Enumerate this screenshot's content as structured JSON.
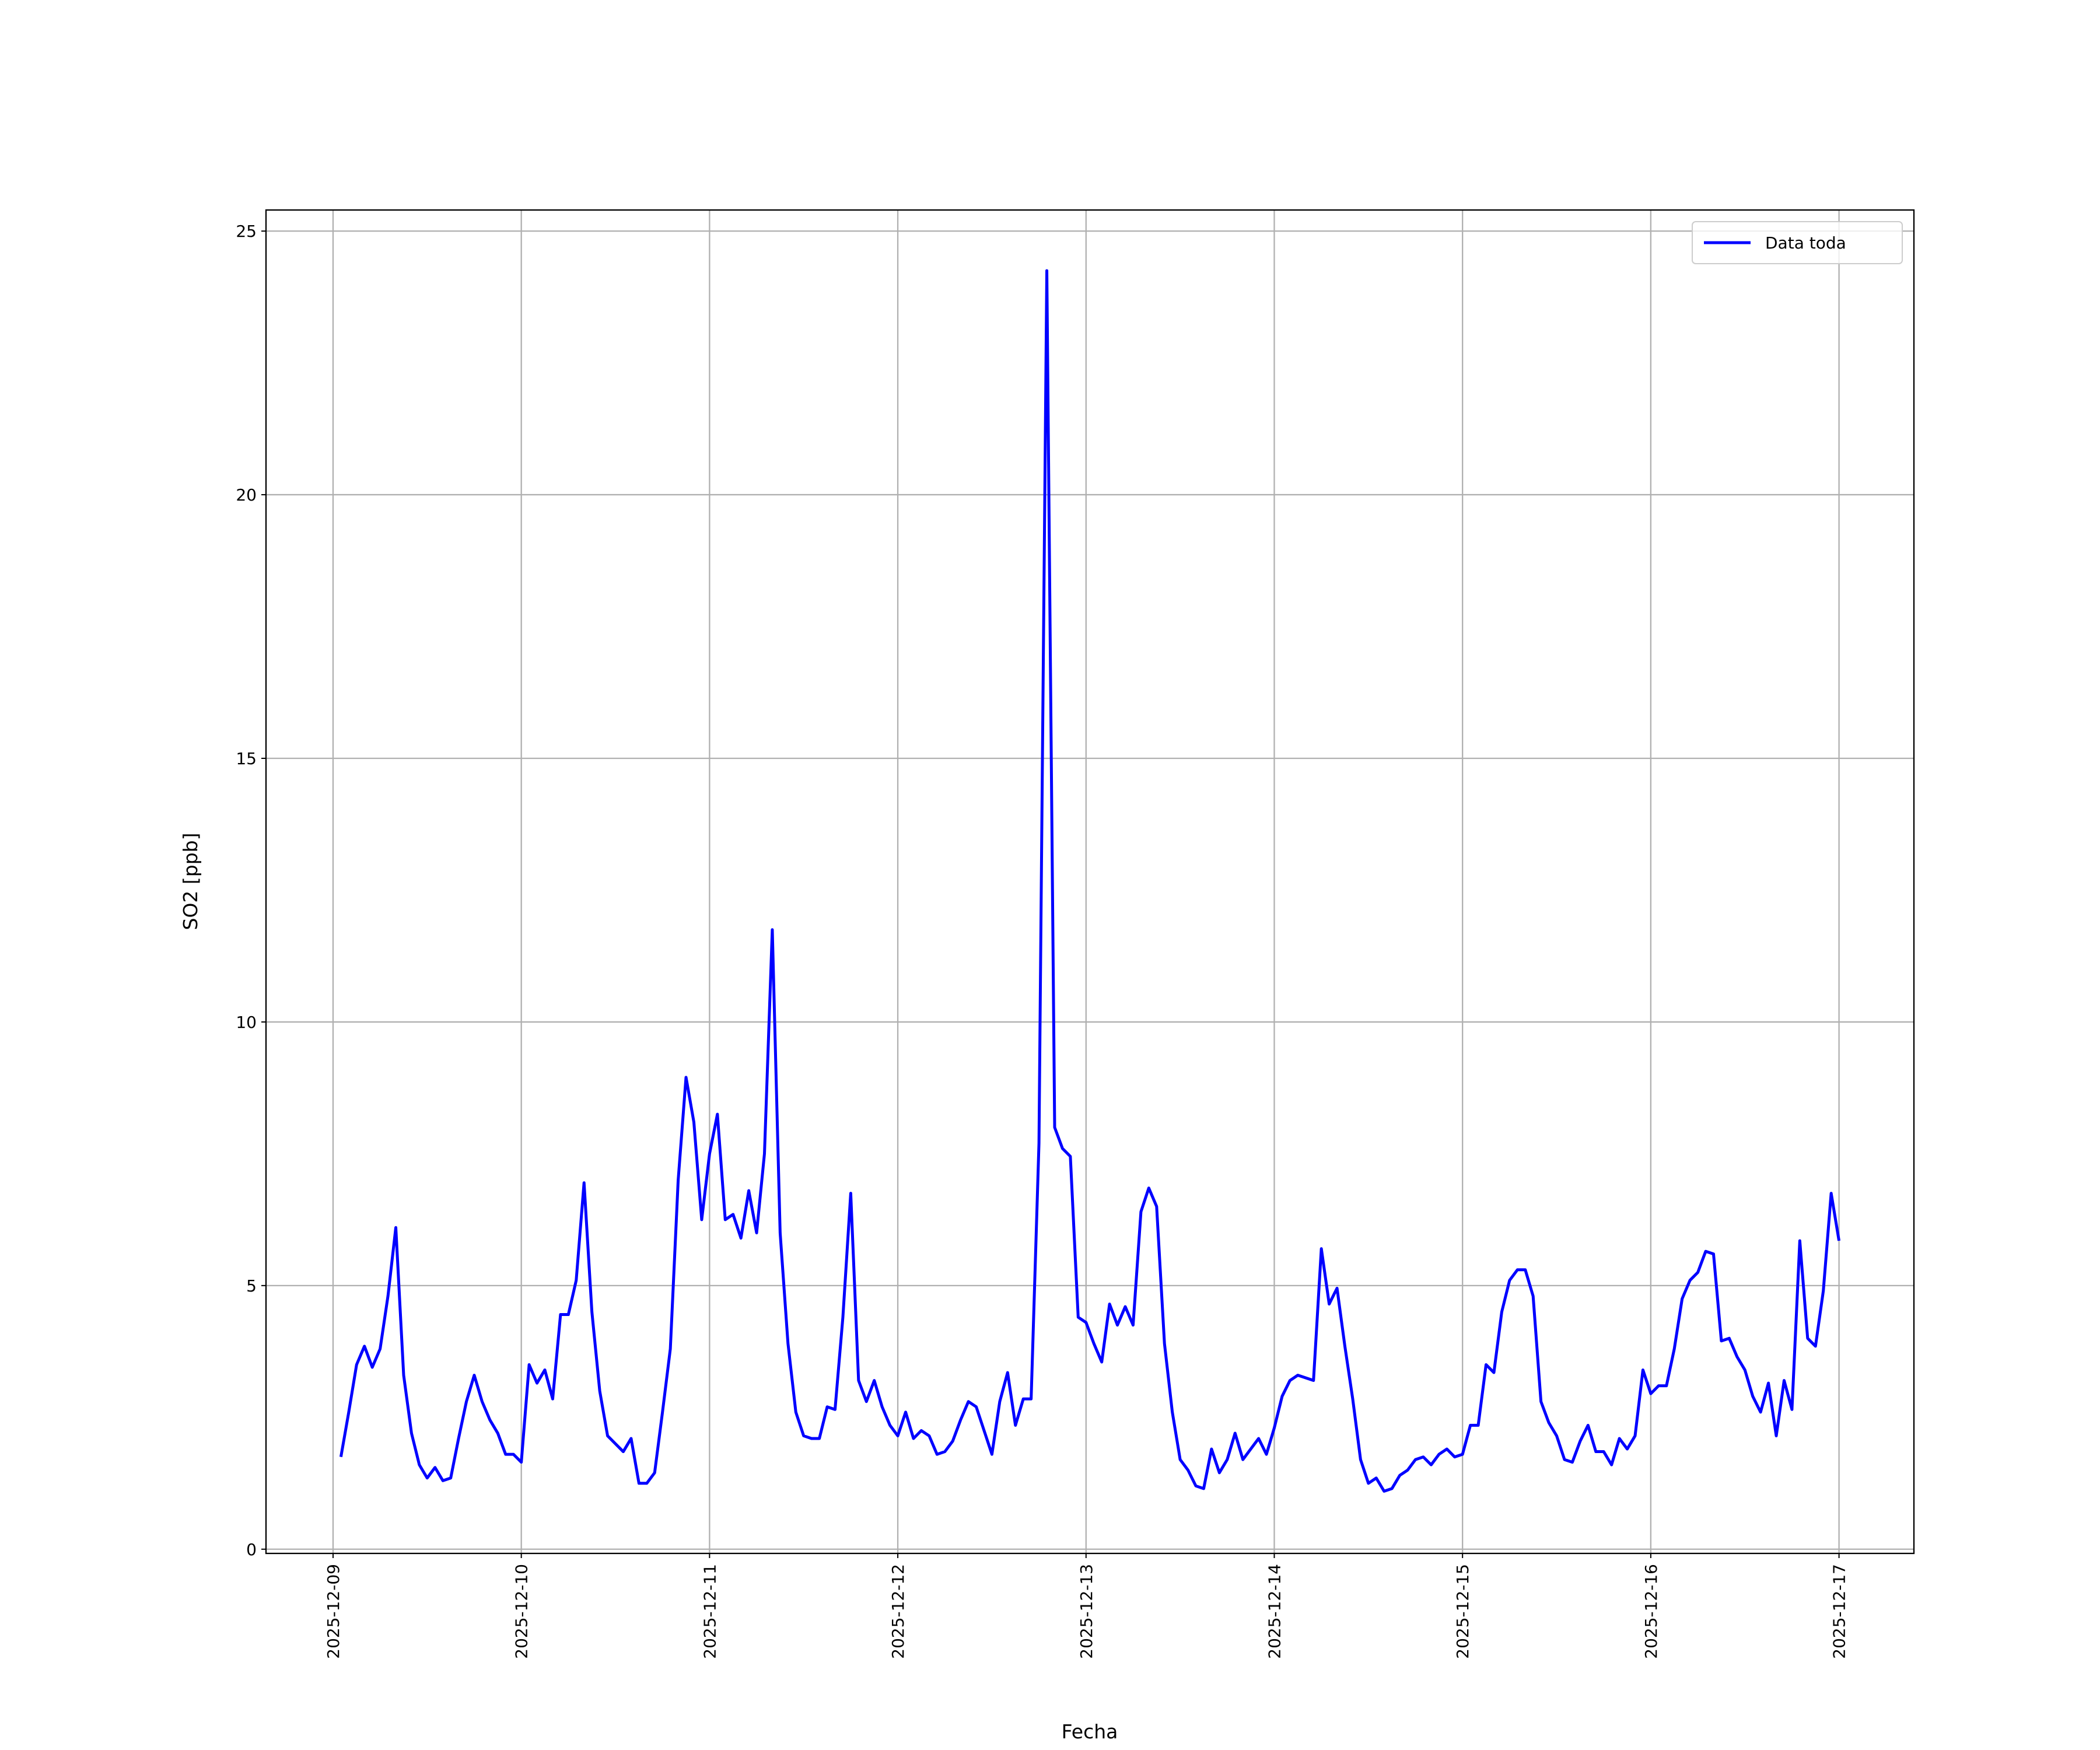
{
  "chart_data": {
    "type": "line",
    "xlabel": "Fecha",
    "ylabel": "SO2 [ppb]",
    "x": [
      "2025-12-09T01:00",
      "2025-12-09T02:00",
      "2025-12-09T03:00",
      "2025-12-09T04:00",
      "2025-12-09T05:00",
      "2025-12-09T06:00",
      "2025-12-09T07:00",
      "2025-12-09T08:00",
      "2025-12-09T09:00",
      "2025-12-09T10:00",
      "2025-12-09T11:00",
      "2025-12-09T12:00",
      "2025-12-09T13:00",
      "2025-12-09T14:00",
      "2025-12-09T15:00",
      "2025-12-09T16:00",
      "2025-12-09T17:00",
      "2025-12-09T18:00",
      "2025-12-09T19:00",
      "2025-12-09T20:00",
      "2025-12-09T21:00",
      "2025-12-09T22:00",
      "2025-12-09T23:00",
      "2025-12-10T00:00",
      "2025-12-10T01:00",
      "2025-12-10T02:00",
      "2025-12-10T03:00",
      "2025-12-10T04:00",
      "2025-12-10T05:00",
      "2025-12-10T06:00",
      "2025-12-10T07:00",
      "2025-12-10T08:00",
      "2025-12-10T09:00",
      "2025-12-10T10:00",
      "2025-12-10T11:00",
      "2025-12-10T12:00",
      "2025-12-10T13:00",
      "2025-12-10T14:00",
      "2025-12-10T15:00",
      "2025-12-10T16:00",
      "2025-12-10T17:00",
      "2025-12-10T18:00",
      "2025-12-10T19:00",
      "2025-12-10T20:00",
      "2025-12-10T21:00",
      "2025-12-10T22:00",
      "2025-12-10T23:00",
      "2025-12-11T00:00",
      "2025-12-11T01:00",
      "2025-12-11T02:00",
      "2025-12-11T03:00",
      "2025-12-11T04:00",
      "2025-12-11T05:00",
      "2025-12-11T06:00",
      "2025-12-11T07:00",
      "2025-12-11T08:00",
      "2025-12-11T09:00",
      "2025-12-11T10:00",
      "2025-12-11T11:00",
      "2025-12-11T12:00",
      "2025-12-11T13:00",
      "2025-12-11T14:00",
      "2025-12-11T15:00",
      "2025-12-11T16:00",
      "2025-12-11T17:00",
      "2025-12-11T18:00",
      "2025-12-11T19:00",
      "2025-12-11T20:00",
      "2025-12-11T21:00",
      "2025-12-11T22:00",
      "2025-12-11T23:00",
      "2025-12-12T00:00",
      "2025-12-12T01:00",
      "2025-12-12T02:00",
      "2025-12-12T03:00",
      "2025-12-12T04:00",
      "2025-12-12T05:00",
      "2025-12-12T06:00",
      "2025-12-12T07:00",
      "2025-12-12T08:00",
      "2025-12-12T09:00",
      "2025-12-12T10:00",
      "2025-12-12T11:00",
      "2025-12-12T12:00",
      "2025-12-12T13:00",
      "2025-12-12T14:00",
      "2025-12-12T15:00",
      "2025-12-12T16:00",
      "2025-12-12T17:00",
      "2025-12-12T18:00",
      "2025-12-12T19:00",
      "2025-12-12T20:00",
      "2025-12-12T21:00",
      "2025-12-12T22:00",
      "2025-12-12T23:00",
      "2025-12-13T00:00",
      "2025-12-13T01:00",
      "2025-12-13T02:00",
      "2025-12-13T03:00",
      "2025-12-13T04:00",
      "2025-12-13T05:00",
      "2025-12-13T06:00",
      "2025-12-13T07:00",
      "2025-12-13T08:00",
      "2025-12-13T09:00",
      "2025-12-13T10:00",
      "2025-12-13T11:00",
      "2025-12-13T12:00",
      "2025-12-13T13:00",
      "2025-12-13T14:00",
      "2025-12-13T15:00",
      "2025-12-13T16:00",
      "2025-12-13T17:00",
      "2025-12-13T18:00",
      "2025-12-13T19:00",
      "2025-12-13T20:00",
      "2025-12-13T21:00",
      "2025-12-13T22:00",
      "2025-12-13T23:00",
      "2025-12-14T00:00",
      "2025-12-14T01:00",
      "2025-12-14T02:00",
      "2025-12-14T03:00",
      "2025-12-14T04:00",
      "2025-12-14T05:00",
      "2025-12-14T06:00",
      "2025-12-14T07:00",
      "2025-12-14T08:00",
      "2025-12-14T09:00",
      "2025-12-14T10:00",
      "2025-12-14T11:00",
      "2025-12-14T12:00",
      "2025-12-14T13:00",
      "2025-12-14T14:00",
      "2025-12-14T15:00",
      "2025-12-14T16:00",
      "2025-12-14T17:00",
      "2025-12-14T18:00",
      "2025-12-14T19:00",
      "2025-12-14T20:00",
      "2025-12-14T21:00",
      "2025-12-14T22:00",
      "2025-12-14T23:00",
      "2025-12-15T00:00",
      "2025-12-15T01:00",
      "2025-12-15T02:00",
      "2025-12-15T03:00",
      "2025-12-15T04:00",
      "2025-12-15T05:00",
      "2025-12-15T06:00",
      "2025-12-15T07:00",
      "2025-12-15T08:00",
      "2025-12-15T09:00",
      "2025-12-15T10:00",
      "2025-12-15T11:00",
      "2025-12-15T12:00",
      "2025-12-15T13:00",
      "2025-12-15T14:00",
      "2025-12-15T15:00",
      "2025-12-15T16:00",
      "2025-12-15T17:00",
      "2025-12-15T18:00",
      "2025-12-15T19:00",
      "2025-12-15T20:00",
      "2025-12-15T21:00",
      "2025-12-15T22:00",
      "2025-12-15T23:00",
      "2025-12-16T00:00",
      "2025-12-16T01:00",
      "2025-12-16T02:00",
      "2025-12-16T03:00",
      "2025-12-16T04:00",
      "2025-12-16T05:00",
      "2025-12-16T06:00",
      "2025-12-16T07:00",
      "2025-12-16T08:00",
      "2025-12-16T09:00",
      "2025-12-16T10:00",
      "2025-12-16T11:00",
      "2025-12-16T12:00",
      "2025-12-16T13:00",
      "2025-12-16T14:00",
      "2025-12-16T15:00",
      "2025-12-16T16:00",
      "2025-12-16T17:00",
      "2025-12-16T18:00",
      "2025-12-16T19:00",
      "2025-12-16T20:00",
      "2025-12-16T21:00",
      "2025-12-16T22:00",
      "2025-12-16T23:00",
      "2025-12-17T00:00"
    ],
    "series": [
      {
        "name": "Data toda",
        "color": "#0000ff",
        "values": [
          1.75,
          2.6,
          3.5,
          3.85,
          3.45,
          3.8,
          4.8,
          6.1,
          3.3,
          2.2,
          1.6,
          1.35,
          1.55,
          1.3,
          1.35,
          2.1,
          2.8,
          3.3,
          2.8,
          2.45,
          2.2,
          1.8,
          1.8,
          1.65,
          3.5,
          3.15,
          3.4,
          2.85,
          4.45,
          4.45,
          5.1,
          6.95,
          4.5,
          3.0,
          2.15,
          2.0,
          1.85,
          2.1,
          1.25,
          1.25,
          1.45,
          2.6,
          3.8,
          7.0,
          8.95,
          8.1,
          6.25,
          7.5,
          8.25,
          6.25,
          6.35,
          5.9,
          6.8,
          6.0,
          7.5,
          11.75,
          6.0,
          3.9,
          2.6,
          2.15,
          2.1,
          2.1,
          2.7,
          2.65,
          4.4,
          6.75,
          3.2,
          2.8,
          3.2,
          2.7,
          2.35,
          2.15,
          2.6,
          2.1,
          2.25,
          2.15,
          1.8,
          1.85,
          2.05,
          2.45,
          2.8,
          2.7,
          2.25,
          1.8,
          2.8,
          3.35,
          2.35,
          2.85,
          2.85,
          7.7,
          24.25,
          8.0,
          7.6,
          7.45,
          4.4,
          4.3,
          3.9,
          3.55,
          4.65,
          4.25,
          4.6,
          4.25,
          6.4,
          6.85,
          6.5,
          3.9,
          2.6,
          1.7,
          1.5,
          1.2,
          1.15,
          1.9,
          1.45,
          1.7,
          2.2,
          1.7,
          1.9,
          2.1,
          1.8,
          2.3,
          2.9,
          3.2,
          3.3,
          3.25,
          3.2,
          5.7,
          4.65,
          4.95,
          3.85,
          2.85,
          1.7,
          1.25,
          1.35,
          1.1,
          1.15,
          1.4,
          1.5,
          1.7,
          1.75,
          1.6,
          1.8,
          1.9,
          1.75,
          1.8,
          2.35,
          2.35,
          3.5,
          3.35,
          4.5,
          5.1,
          5.3,
          5.3,
          4.8,
          2.8,
          2.4,
          2.15,
          1.7,
          1.65,
          2.05,
          2.35,
          1.85,
          1.85,
          1.6,
          2.1,
          1.9,
          2.15,
          3.4,
          2.95,
          3.1,
          3.1,
          3.8,
          4.75,
          5.1,
          5.25,
          5.65,
          5.6,
          3.95,
          4.0,
          3.65,
          3.4,
          2.9,
          2.6,
          3.15,
          2.15,
          3.2,
          2.65,
          5.85,
          4.0,
          3.85,
          4.9,
          6.75,
          5.85
        ]
      }
    ],
    "xlim": [
      "2025-12-08T15:27",
      "2025-12-17T09:33"
    ],
    "xticks": [
      "2025-12-09",
      "2025-12-10",
      "2025-12-11",
      "2025-12-12",
      "2025-12-13",
      "2025-12-14",
      "2025-12-15",
      "2025-12-16",
      "2025-12-17"
    ],
    "ylim": [
      -0.08,
      25.4
    ],
    "yticks": [
      0,
      5,
      10,
      15,
      20,
      25
    ],
    "grid": true,
    "legend": "upper right"
  }
}
